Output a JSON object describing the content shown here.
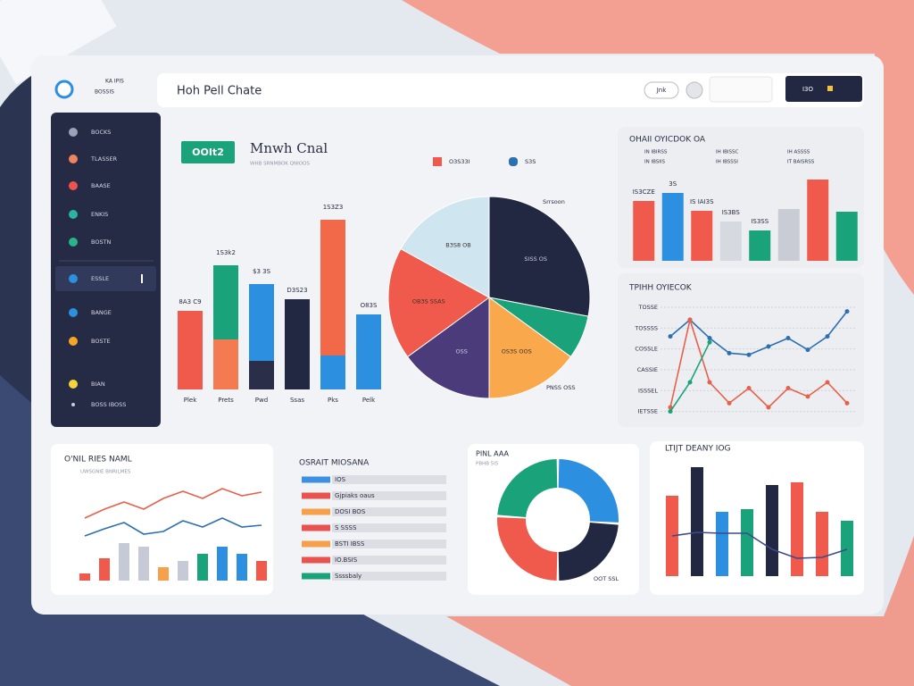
{
  "header": {
    "logo_lines": [
      "KA IPIS",
      "BOSSIS"
    ],
    "title": "Hoh Pell Chate",
    "buttons": [
      "Jnk",
      "I3O"
    ]
  },
  "sidebar": {
    "items": [
      "BOCKS",
      "TLASSER",
      "BAASE",
      "ENKIS",
      "BOSTN",
      "ESSLE",
      "BANGE",
      "BOSTE",
      "BIAN",
      "BOSS IBOSS"
    ]
  },
  "legend_panel": {
    "title": "OSRAIT MIOSANA",
    "items": [
      {
        "label": "IOS",
        "color": "#3d8fe0"
      },
      {
        "label": "Gjpiaks oaus",
        "color": "#e8524f"
      },
      {
        "label": "DOSI BOS",
        "color": "#f6a04b"
      },
      {
        "label": "S SSSS",
        "color": "#e8524f"
      },
      {
        "label": "BSTI IBSS",
        "color": "#f6a04b"
      },
      {
        "label": "IO.BSIS",
        "color": "#e8524f"
      },
      {
        "label": "Ssssbaly",
        "color": "#1aa37a"
      }
    ]
  },
  "chart_data": [
    {
      "type": "bar",
      "badge": "OOIt2",
      "title": "Mnwh Cnal",
      "subtitle": "WHB SRNMBOK QNIOOS",
      "categories": [
        "Plek",
        "Prets",
        "Pwd",
        "Ssas",
        "Pks",
        "Pelk"
      ],
      "series": [
        {
          "values": [
            88,
            56,
            32,
            101,
            38,
            84
          ],
          "colors": [
            "#ef5a4c",
            "#f47a52",
            "#2a2e48",
            "#232842",
            "#2d8fe0",
            "#2d8fe0"
          ]
        },
        {
          "values": [
            null,
            87,
            90,
            null,
            156,
            null
          ],
          "colors": [
            null,
            "#1aa37a",
            "#2d8fe0",
            null,
            "#f2694a",
            null
          ]
        }
      ],
      "annotations": [
        "8A3 C9",
        "1S3k2",
        "$3 3S",
        "D3S23",
        "1S3Z3",
        "O83S"
      ],
      "ylim": [
        0,
        210
      ]
    },
    {
      "type": "pie",
      "categories": [
        "SISS OS",
        null,
        "OS3S OOS",
        "OSS",
        "OB3S SSAS",
        "B3S8 OB"
      ],
      "values": [
        28,
        7,
        15,
        15,
        18,
        17
      ],
      "colors": [
        "#232842",
        "#1aa37a",
        "#f9a94b",
        "#4b3b7a",
        "#ef5a4c",
        "#cfe6f1"
      ],
      "legend": [
        {
          "label": "O3S33I",
          "color": "#ef5a4c"
        },
        {
          "label": "S3S",
          "color": "#2a6fb0"
        }
      ],
      "annotations": [
        "Srrsoon",
        "PNSS OSS"
      ]
    },
    {
      "type": "bar",
      "title": "OHAII OYICDOK OA",
      "legend_labels": [
        "IN IBIRSS",
        "IH IBISSC",
        "IH ASSSS",
        "IN IBSIIS",
        "IH IBSSSI",
        "IT BAISRSS"
      ],
      "values": [
        67,
        76,
        56,
        44,
        34,
        58,
        91,
        55
      ],
      "colors": [
        "#ef5a4c",
        "#2d8fe0",
        "#ef5a4c",
        "#d6d9e0",
        "#1aa37a",
        "#c9ccd4",
        "#ef5a4c",
        "#1aa37a"
      ],
      "annotations": [
        "IS3CZE",
        "3S",
        "IS IAI3S",
        "IS3BS",
        "IS3SS"
      ],
      "ylim": [
        0,
        100
      ]
    },
    {
      "type": "line",
      "title": "TPIHH OYIECOK",
      "categories": [
        null,
        null,
        null,
        null,
        null,
        null,
        null,
        null,
        null,
        null
      ],
      "series": [
        {
          "color": "#2d6fb0",
          "values": [
            90,
            110,
            88,
            70,
            68,
            78,
            88,
            74,
            90,
            120
          ]
        },
        {
          "color": "#e8604a",
          "values": [
            5,
            110,
            35,
            10,
            28,
            5,
            28,
            18,
            35,
            10
          ]
        },
        {
          "color": "#1aa37a",
          "values": [
            0,
            35,
            83,
            null,
            null,
            null,
            null,
            null,
            null,
            null
          ]
        }
      ],
      "ylim": [
        -10,
        140
      ],
      "yticks": [
        {
          "value": 0,
          "label": "IETSSE"
        },
        {
          "value": 25,
          "label": "ISSSEL"
        },
        {
          "value": 50,
          "label": "CASSIE"
        },
        {
          "value": 75,
          "label": "COSSLE"
        },
        {
          "value": 100,
          "label": "TOSSSS"
        },
        {
          "value": 125,
          "label": "TOSSE"
        }
      ],
      "grid": true
    },
    {
      "type": "combo",
      "title": "O'NIL RIES NAML",
      "subtitle": "UWSGNIE BNRILMES",
      "categories": [
        null,
        null,
        null,
        null,
        null,
        null,
        null,
        null,
        null,
        null
      ],
      "series": [
        {
          "type": "bar",
          "values": [
            8,
            25,
            42,
            38,
            15,
            22,
            30,
            38,
            30,
            22
          ],
          "colors": [
            "#ef5a4c",
            "#ef5a4c",
            "#c5cad6",
            "#c5cad6",
            "#f6a04b",
            "#c5cad6",
            "#1aa37a",
            "#2d8fe0",
            "#2d8fe0",
            "#ef5a4c"
          ]
        },
        {
          "type": "line",
          "color": "#e8604a",
          "values": [
            70,
            80,
            88,
            80,
            92,
            100,
            92,
            103,
            95,
            99
          ]
        },
        {
          "type": "line",
          "color": "#2d6fb0",
          "values": [
            50,
            58,
            65,
            52,
            55,
            67,
            60,
            70,
            60,
            62
          ]
        }
      ],
      "ylim": [
        0,
        120
      ]
    },
    {
      "type": "donut",
      "title": "PINL AAA",
      "subtitle": "PBHB 5I5",
      "values": [
        26,
        24,
        26,
        24
      ],
      "colors": [
        "#2d8fe0",
        "#232842",
        "#ef5a4c",
        "#1aa37a"
      ],
      "annotations": [
        "OOT SSL"
      ]
    },
    {
      "type": "combo",
      "title": "LTIJT DEANY IOG",
      "categories": [
        null,
        null,
        null,
        null,
        null,
        null,
        null,
        null
      ],
      "series": [
        {
          "type": "bar",
          "values": [
            90,
            122,
            72,
            75,
            102,
            105,
            72,
            62
          ],
          "colors": [
            "#ef5a4c",
            "#232842",
            "#2d8fe0",
            "#1aa37a",
            "#232842",
            "#ef5a4c",
            "#ef5a4c",
            "#1aa37a"
          ]
        },
        {
          "type": "line",
          "color": "#3b4a8a",
          "values": [
            45,
            49,
            48,
            48,
            30,
            20,
            21,
            30
          ]
        }
      ],
      "ylim": [
        0,
        130
      ]
    }
  ]
}
